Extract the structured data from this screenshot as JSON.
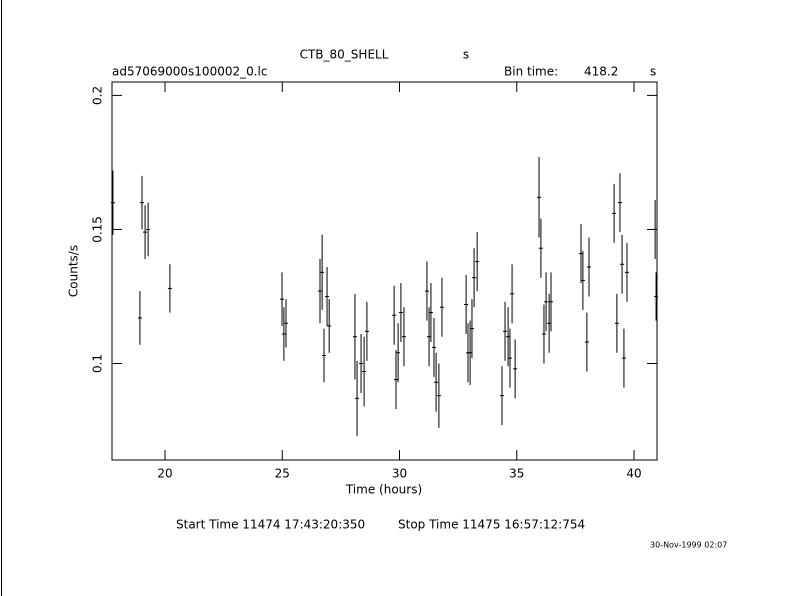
{
  "chart_data": {
    "type": "errorbar",
    "title": "CTB_80_SHELL",
    "title_unit": "s",
    "file_name": "ad57069000s100002_0.lc",
    "bin_label": "Bin time:",
    "bin_value": "418.2",
    "bin_unit": "s",
    "xlabel": "Time (hours)",
    "ylabel": "Counts/s",
    "start_time": "Start Time 11474 17:43:20:350",
    "stop_time": "Stop Time 11475 16:57:12:754",
    "date_stamp": "30-Nov-1999 02:07",
    "xlim": [
      17.74,
      40.98
    ],
    "ylim": [
      0.064,
      0.205
    ],
    "xticks": [
      20,
      25,
      30,
      35,
      40
    ],
    "yticks": [
      0.1,
      0.15,
      0.2
    ],
    "color": "#000000",
    "x": [
      17.78,
      18.93,
      19.02,
      19.15,
      19.28,
      20.21,
      24.99,
      25.07,
      25.16,
      26.61,
      26.7,
      26.78,
      26.91,
      27.0,
      28.1,
      28.19,
      28.36,
      28.49,
      28.61,
      29.77,
      29.85,
      29.94,
      30.06,
      30.19,
      31.17,
      31.26,
      31.34,
      31.47,
      31.56,
      31.68,
      31.81,
      32.84,
      32.92,
      33.01,
      33.09,
      33.18,
      33.31,
      34.37,
      34.5,
      34.63,
      34.71,
      34.8,
      34.93,
      35.95,
      36.03,
      36.16,
      36.25,
      36.38,
      36.46,
      37.74,
      37.82,
      37.99,
      38.08,
      39.15,
      39.27,
      39.4,
      39.49,
      39.57,
      39.7,
      40.9,
      40.94
    ],
    "values": [
      0.16,
      0.117,
      0.16,
      0.149,
      0.15,
      0.128,
      0.124,
      0.111,
      0.115,
      0.127,
      0.134,
      0.103,
      0.125,
      0.114,
      0.11,
      0.087,
      0.1,
      0.097,
      0.112,
      0.118,
      0.094,
      0.104,
      0.119,
      0.11,
      0.127,
      0.11,
      0.119,
      0.106,
      0.093,
      0.088,
      0.121,
      0.122,
      0.104,
      0.104,
      0.113,
      0.132,
      0.138,
      0.088,
      0.112,
      0.11,
      0.102,
      0.126,
      0.098,
      0.162,
      0.143,
      0.111,
      0.123,
      0.115,
      0.123,
      0.141,
      0.131,
      0.108,
      0.136,
      0.156,
      0.115,
      0.16,
      0.137,
      0.102,
      0.134,
      0.15,
      0.125
    ],
    "errors": [
      0.012,
      0.01,
      0.01,
      0.01,
      0.01,
      0.009,
      0.01,
      0.01,
      0.009,
      0.012,
      0.014,
      0.01,
      0.011,
      0.01,
      0.016,
      0.014,
      0.011,
      0.013,
      0.011,
      0.011,
      0.011,
      0.011,
      0.011,
      0.011,
      0.011,
      0.011,
      0.011,
      0.011,
      0.011,
      0.012,
      0.011,
      0.011,
      0.011,
      0.012,
      0.011,
      0.011,
      0.011,
      0.011,
      0.011,
      0.011,
      0.011,
      0.011,
      0.011,
      0.015,
      0.011,
      0.011,
      0.011,
      0.011,
      0.011,
      0.011,
      0.011,
      0.011,
      0.011,
      0.011,
      0.011,
      0.011,
      0.011,
      0.011,
      0.011,
      0.011,
      0.009
    ]
  }
}
